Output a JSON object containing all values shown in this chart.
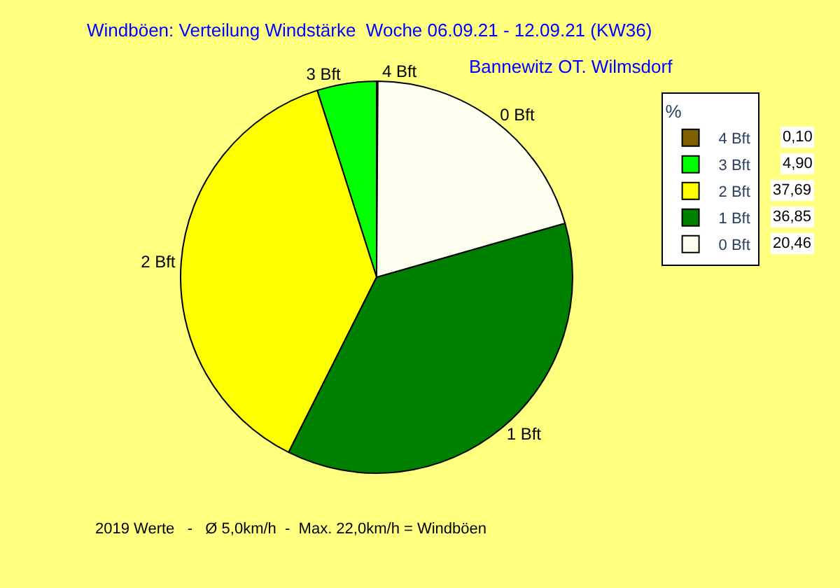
{
  "chart_data": {
    "type": "pie",
    "title": "Windböen: Verteilung Windstärke  Woche 06.09.21 - 12.09.21 (KW36)",
    "subtitle": "Bannewitz OT. Wilmsdorf",
    "categories": [
      "4 Bft",
      "3 Bft",
      "2 Bft",
      "1 Bft",
      "0 Bft"
    ],
    "values": [
      0.1,
      4.9,
      37.69,
      36.85,
      20.46
    ],
    "value_labels": [
      "0,10",
      "4,90",
      "37,69",
      "36,85",
      "20,46"
    ],
    "colors": [
      "#806000",
      "#00ff00",
      "#ffff00",
      "#008000",
      "#fffff0"
    ],
    "legend_title": "%",
    "legend": "top right",
    "annotations": [
      "2019 Werte   -   Ø 5,0km/h  -  Max. 22,0km/h = Windböen"
    ]
  }
}
